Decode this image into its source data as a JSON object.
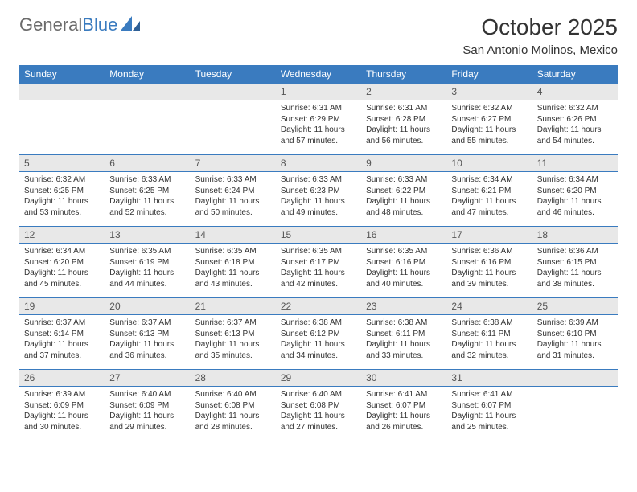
{
  "brand": {
    "part1": "General",
    "part2": "Blue"
  },
  "title": "October 2025",
  "location": "San Antonio Molinos, Mexico",
  "colors": {
    "header_bg": "#3a7bbf",
    "header_fg": "#ffffff",
    "daynum_bg": "#e8e8e8",
    "text": "#333333",
    "logo_gray": "#6b6b6b",
    "logo_blue": "#3a7bbf",
    "row_border": "#3a7bbf"
  },
  "days_of_week": [
    "Sunday",
    "Monday",
    "Tuesday",
    "Wednesday",
    "Thursday",
    "Friday",
    "Saturday"
  ],
  "weeks": [
    [
      null,
      null,
      null,
      {
        "n": "1",
        "sr": "6:31 AM",
        "ss": "6:29 PM",
        "dl": "11 hours and 57 minutes."
      },
      {
        "n": "2",
        "sr": "6:31 AM",
        "ss": "6:28 PM",
        "dl": "11 hours and 56 minutes."
      },
      {
        "n": "3",
        "sr": "6:32 AM",
        "ss": "6:27 PM",
        "dl": "11 hours and 55 minutes."
      },
      {
        "n": "4",
        "sr": "6:32 AM",
        "ss": "6:26 PM",
        "dl": "11 hours and 54 minutes."
      }
    ],
    [
      {
        "n": "5",
        "sr": "6:32 AM",
        "ss": "6:25 PM",
        "dl": "11 hours and 53 minutes."
      },
      {
        "n": "6",
        "sr": "6:33 AM",
        "ss": "6:25 PM",
        "dl": "11 hours and 52 minutes."
      },
      {
        "n": "7",
        "sr": "6:33 AM",
        "ss": "6:24 PM",
        "dl": "11 hours and 50 minutes."
      },
      {
        "n": "8",
        "sr": "6:33 AM",
        "ss": "6:23 PM",
        "dl": "11 hours and 49 minutes."
      },
      {
        "n": "9",
        "sr": "6:33 AM",
        "ss": "6:22 PM",
        "dl": "11 hours and 48 minutes."
      },
      {
        "n": "10",
        "sr": "6:34 AM",
        "ss": "6:21 PM",
        "dl": "11 hours and 47 minutes."
      },
      {
        "n": "11",
        "sr": "6:34 AM",
        "ss": "6:20 PM",
        "dl": "11 hours and 46 minutes."
      }
    ],
    [
      {
        "n": "12",
        "sr": "6:34 AM",
        "ss": "6:20 PM",
        "dl": "11 hours and 45 minutes."
      },
      {
        "n": "13",
        "sr": "6:35 AM",
        "ss": "6:19 PM",
        "dl": "11 hours and 44 minutes."
      },
      {
        "n": "14",
        "sr": "6:35 AM",
        "ss": "6:18 PM",
        "dl": "11 hours and 43 minutes."
      },
      {
        "n": "15",
        "sr": "6:35 AM",
        "ss": "6:17 PM",
        "dl": "11 hours and 42 minutes."
      },
      {
        "n": "16",
        "sr": "6:35 AM",
        "ss": "6:16 PM",
        "dl": "11 hours and 40 minutes."
      },
      {
        "n": "17",
        "sr": "6:36 AM",
        "ss": "6:16 PM",
        "dl": "11 hours and 39 minutes."
      },
      {
        "n": "18",
        "sr": "6:36 AM",
        "ss": "6:15 PM",
        "dl": "11 hours and 38 minutes."
      }
    ],
    [
      {
        "n": "19",
        "sr": "6:37 AM",
        "ss": "6:14 PM",
        "dl": "11 hours and 37 minutes."
      },
      {
        "n": "20",
        "sr": "6:37 AM",
        "ss": "6:13 PM",
        "dl": "11 hours and 36 minutes."
      },
      {
        "n": "21",
        "sr": "6:37 AM",
        "ss": "6:13 PM",
        "dl": "11 hours and 35 minutes."
      },
      {
        "n": "22",
        "sr": "6:38 AM",
        "ss": "6:12 PM",
        "dl": "11 hours and 34 minutes."
      },
      {
        "n": "23",
        "sr": "6:38 AM",
        "ss": "6:11 PM",
        "dl": "11 hours and 33 minutes."
      },
      {
        "n": "24",
        "sr": "6:38 AM",
        "ss": "6:11 PM",
        "dl": "11 hours and 32 minutes."
      },
      {
        "n": "25",
        "sr": "6:39 AM",
        "ss": "6:10 PM",
        "dl": "11 hours and 31 minutes."
      }
    ],
    [
      {
        "n": "26",
        "sr": "6:39 AM",
        "ss": "6:09 PM",
        "dl": "11 hours and 30 minutes."
      },
      {
        "n": "27",
        "sr": "6:40 AM",
        "ss": "6:09 PM",
        "dl": "11 hours and 29 minutes."
      },
      {
        "n": "28",
        "sr": "6:40 AM",
        "ss": "6:08 PM",
        "dl": "11 hours and 28 minutes."
      },
      {
        "n": "29",
        "sr": "6:40 AM",
        "ss": "6:08 PM",
        "dl": "11 hours and 27 minutes."
      },
      {
        "n": "30",
        "sr": "6:41 AM",
        "ss": "6:07 PM",
        "dl": "11 hours and 26 minutes."
      },
      {
        "n": "31",
        "sr": "6:41 AM",
        "ss": "6:07 PM",
        "dl": "11 hours and 25 minutes."
      },
      null
    ]
  ],
  "labels": {
    "sunrise": "Sunrise:",
    "sunset": "Sunset:",
    "daylight": "Daylight:"
  }
}
